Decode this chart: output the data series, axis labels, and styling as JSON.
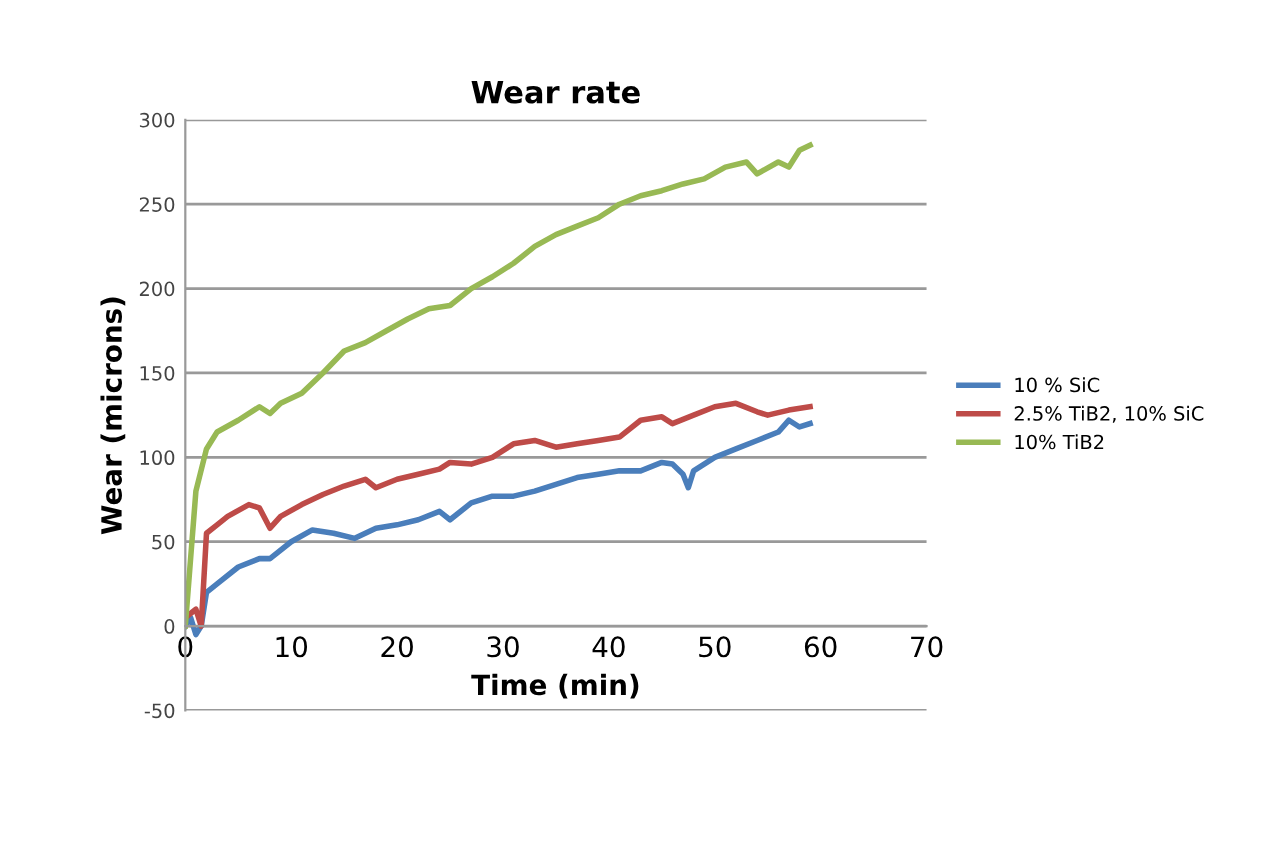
{
  "chart_data": {
    "type": "line",
    "title": "Wear rate",
    "xlabel": "Time (min)",
    "ylabel": "Wear (microns)",
    "xlim": [
      0,
      70
    ],
    "xticks": [
      0,
      10,
      20,
      30,
      40,
      50,
      60,
      70
    ],
    "ylim": [
      -50,
      300
    ],
    "yticks": [
      -50,
      0,
      50,
      100,
      150,
      200,
      250,
      300
    ],
    "grid": "y",
    "legend": "right",
    "marker": "none",
    "line_style": "solid",
    "series": [
      {
        "name": "10 % SiC",
        "color": "#4a7ebb",
        "x": [
          0,
          0.5,
          1,
          1.5,
          2,
          3,
          5,
          7,
          8,
          10,
          12,
          14,
          16,
          18,
          20,
          22,
          24,
          25,
          27,
          29,
          31,
          33,
          35,
          37,
          39,
          41,
          43,
          45,
          46,
          47,
          47.5,
          48,
          50,
          52,
          54,
          56,
          57,
          58,
          59
        ],
        "values": [
          0,
          5,
          -5,
          0,
          20,
          25,
          35,
          40,
          40,
          50,
          57,
          55,
          52,
          58,
          60,
          63,
          68,
          63,
          73,
          77,
          77,
          80,
          84,
          88,
          90,
          92,
          92,
          97,
          96,
          90,
          82,
          92,
          100,
          105,
          110,
          115,
          122,
          118,
          120
        ]
      },
      {
        "name": "2.5% TiB2, 10% SiC",
        "color": "#be4b48",
        "x": [
          0,
          1,
          1.5,
          2,
          3,
          4,
          6,
          7,
          8,
          9,
          11,
          13,
          15,
          17,
          18,
          20,
          22,
          24,
          25,
          27,
          29,
          31,
          33,
          35,
          37,
          39,
          41,
          43,
          45,
          46,
          48,
          50,
          52,
          54,
          55,
          57,
          59
        ],
        "values": [
          5,
          10,
          0,
          55,
          60,
          65,
          72,
          70,
          58,
          65,
          72,
          78,
          83,
          87,
          82,
          87,
          90,
          93,
          97,
          96,
          100,
          108,
          110,
          106,
          108,
          110,
          112,
          122,
          124,
          120,
          125,
          130,
          132,
          127,
          125,
          128,
          130
        ]
      },
      {
        "name": "10% TiB2",
        "color": "#98b954",
        "x": [
          0,
          0.5,
          1,
          2,
          3,
          5,
          7,
          8,
          9,
          11,
          13,
          15,
          17,
          19,
          21,
          23,
          25,
          27,
          29,
          31,
          33,
          35,
          37,
          39,
          41,
          43,
          45,
          47,
          49,
          51,
          53,
          54,
          56,
          57,
          58,
          59
        ],
        "values": [
          0,
          40,
          80,
          105,
          115,
          122,
          130,
          126,
          132,
          138,
          150,
          163,
          168,
          175,
          182,
          188,
          190,
          200,
          207,
          215,
          225,
          232,
          237,
          242,
          250,
          255,
          258,
          262,
          265,
          272,
          275,
          268,
          275,
          272,
          282,
          285
        ]
      }
    ]
  }
}
